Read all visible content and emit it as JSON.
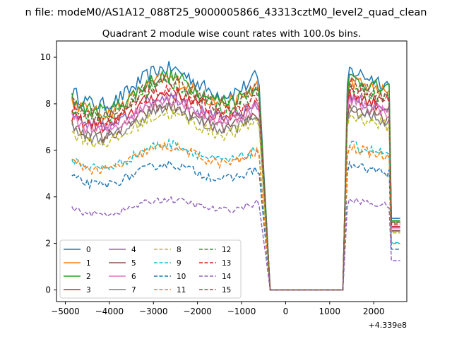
{
  "figure": {
    "suptitle": "n file: modeM0/AS1A12_088T25_9000005866_43313cztM0_level2_quad_clean",
    "offset_text": "+4.339e8"
  },
  "chart_data": {
    "type": "line",
    "title": "Quadrant 2 module wise count rates with 100.0s bins.",
    "xlabel": "",
    "ylabel": "",
    "x_offset": 433900000,
    "xlim": [
      -5200,
      2750
    ],
    "ylim": [
      -0.5,
      10.7
    ],
    "xticks": [
      -5000,
      -4000,
      -3000,
      -2000,
      -1000,
      0,
      1000,
      2000
    ],
    "xtick_labels": [
      "−5000",
      "−4000",
      "−3000",
      "−2000",
      "−1000",
      "0",
      "1000",
      "2000"
    ],
    "yticks": [
      0,
      2,
      4,
      6,
      8,
      10
    ],
    "ytick_labels": [
      "0",
      "2",
      "4",
      "6",
      "8",
      "10"
    ],
    "grid": false,
    "legend_position": "lower-left",
    "legend_columns": 4,
    "x_start": -4850,
    "x_step": 50,
    "series": [
      {
        "name": "0",
        "color": "#1f77b4",
        "dash": "solid",
        "base": 8.8
      },
      {
        "name": "1",
        "color": "#ff7f0e",
        "dash": "solid",
        "base": 8.4
      },
      {
        "name": "2",
        "color": "#2ca02c",
        "dash": "solid",
        "base": 8.5
      },
      {
        "name": "3",
        "color": "#d62728",
        "dash": "solid",
        "base": 7.8
      },
      {
        "name": "4",
        "color": "#9467bd",
        "dash": "solid",
        "base": 7.7
      },
      {
        "name": "5",
        "color": "#8c564b",
        "dash": "solid",
        "base": 7.3
      },
      {
        "name": "6",
        "color": "#e377c2",
        "dash": "solid",
        "base": 7.6
      },
      {
        "name": "7",
        "color": "#7f7f7f",
        "dash": "solid",
        "base": 7.2
      },
      {
        "name": "8",
        "color": "#bcbd22",
        "dash": "dashed",
        "base": 7.0
      },
      {
        "name": "9",
        "color": "#17becf",
        "dash": "dashed",
        "base": 5.8
      },
      {
        "name": "10",
        "color": "#1f77b4",
        "dash": "dashed",
        "base": 5.0
      },
      {
        "name": "11",
        "color": "#ff7f0e",
        "dash": "dashed",
        "base": 5.7
      },
      {
        "name": "12",
        "color": "#2ca02c",
        "dash": "dashed",
        "base": 8.2
      },
      {
        "name": "13",
        "color": "#d62728",
        "dash": "dashed",
        "base": 8.0
      },
      {
        "name": "14",
        "color": "#9467bd",
        "dash": "dashed",
        "base": 3.6
      },
      {
        "name": "15",
        "color": "#8c564b",
        "dash": "dashed",
        "base": 8.3
      }
    ]
  }
}
